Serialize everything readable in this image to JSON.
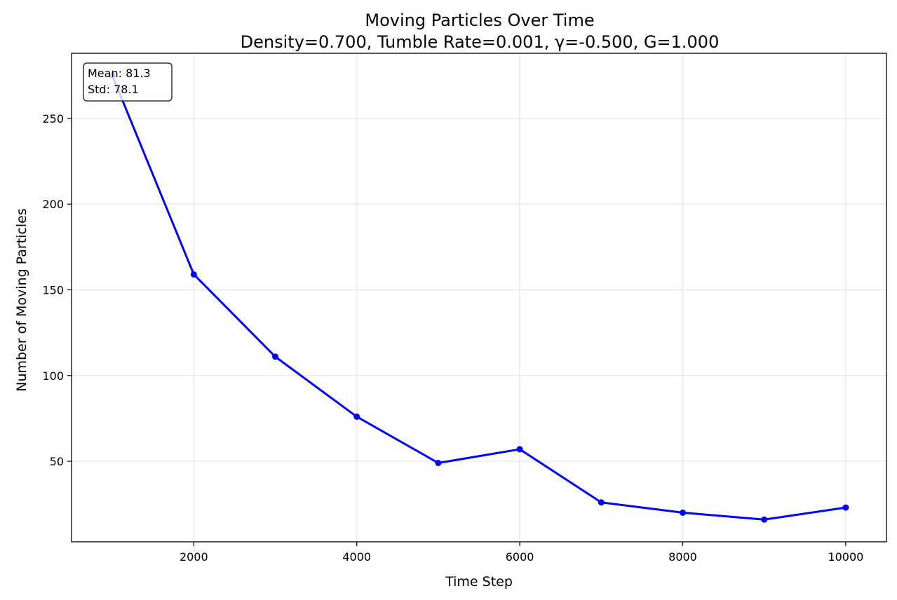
{
  "chart_data": {
    "type": "line",
    "title": "Moving Particles Over Time",
    "subtitle": "Density=0.700, Tumble Rate=0.001, γ=-0.500, G=1.000",
    "xlabel": "Time Step",
    "ylabel": "Number of Moving Particles",
    "xlim": [
      500,
      10500
    ],
    "ylim": [
      3,
      288
    ],
    "xticks": [
      2000,
      4000,
      6000,
      8000,
      10000
    ],
    "yticks": [
      50,
      100,
      150,
      200,
      250
    ],
    "grid": true,
    "series": [
      {
        "color": "#0000ff",
        "marker": "circle",
        "x": [
          1000,
          2000,
          3000,
          4000,
          5000,
          6000,
          7000,
          8000,
          9000,
          10000
        ],
        "y": [
          275,
          159,
          111,
          76,
          49,
          57,
          26,
          20,
          16,
          23
        ]
      }
    ],
    "annotation": {
      "lines": [
        "Mean: 81.3",
        "Std: 78.1"
      ],
      "placement": "top-left"
    }
  }
}
